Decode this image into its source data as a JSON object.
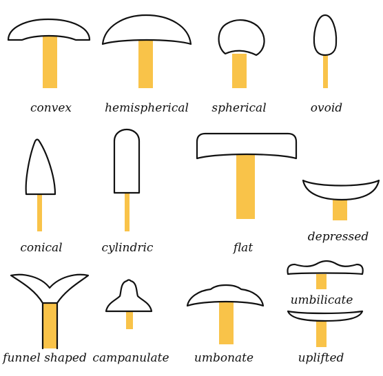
{
  "colors": {
    "stem": "#F9C349",
    "outline": "#111111",
    "cap": "#ffffff"
  },
  "shapes": [
    {
      "id": "convex",
      "label": "convex"
    },
    {
      "id": "hemispherical",
      "label": "hemispherical"
    },
    {
      "id": "spherical",
      "label": "spherical"
    },
    {
      "id": "ovoid",
      "label": "ovoid"
    },
    {
      "id": "conical",
      "label": "conical"
    },
    {
      "id": "cylindric",
      "label": "cylindric"
    },
    {
      "id": "flat",
      "label": "flat"
    },
    {
      "id": "depressed",
      "label": "depressed"
    },
    {
      "id": "funnel-shaped",
      "label": "funnel shaped"
    },
    {
      "id": "campanulate",
      "label": "campanulate"
    },
    {
      "id": "umbonate",
      "label": "umbonate"
    },
    {
      "id": "umbilicate",
      "label": "umbilicate"
    },
    {
      "id": "uplifted",
      "label": "uplifted"
    }
  ]
}
